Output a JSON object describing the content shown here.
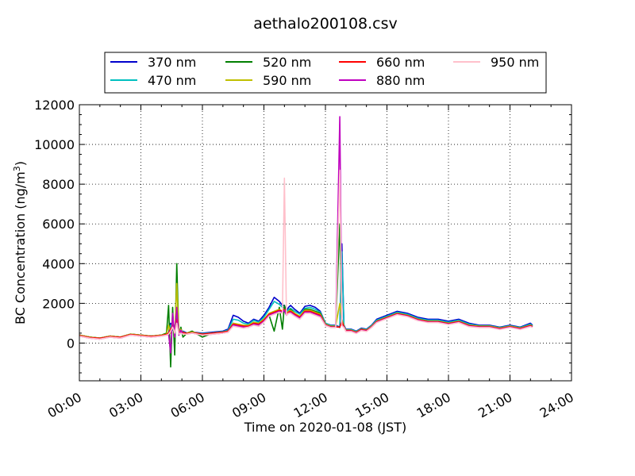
{
  "chart_data": {
    "type": "line",
    "title": "aethalo200108.csv",
    "xlabel": "Time on 2020-01-08 (JST)",
    "ylabel_main": "BC Concentration (ng/m",
    "ylabel_sup": "3",
    "ylabel_close": ")",
    "xlim": [
      0,
      24
    ],
    "ylim": [
      -1900,
      12000
    ],
    "yticks": [
      0,
      2000,
      4000,
      6000,
      8000,
      10000,
      12000
    ],
    "ytick_labels": [
      "0",
      "2000",
      "4000",
      "6000",
      "8000",
      "10000",
      "12000"
    ],
    "xticks": [
      0,
      3,
      6,
      9,
      12,
      15,
      18,
      21,
      24
    ],
    "xtick_labels": [
      "00:00",
      "03:00",
      "06:00",
      "09:00",
      "12:00",
      "15:00",
      "18:00",
      "21:00",
      "24:00"
    ],
    "grid": true,
    "legend_position": "top-center",
    "x": [
      0.0,
      0.5,
      1.0,
      1.5,
      2.0,
      2.5,
      3.0,
      3.5,
      4.0,
      4.25,
      4.35,
      4.45,
      4.55,
      4.65,
      4.75,
      4.85,
      4.95,
      5.05,
      5.25,
      5.5,
      6.0,
      6.5,
      7.0,
      7.25,
      7.5,
      7.75,
      8.0,
      8.25,
      8.5,
      8.75,
      9.0,
      9.25,
      9.5,
      9.75,
      9.9,
      10.0,
      10.1,
      10.2,
      10.3,
      10.5,
      10.75,
      11.0,
      11.25,
      11.5,
      11.75,
      12.0,
      12.25,
      12.5,
      12.7,
      12.8,
      12.9,
      13.0,
      13.25,
      13.5,
      13.75,
      14.0,
      14.25,
      14.5,
      14.75,
      15.0,
      15.5,
      16.0,
      16.5,
      17.0,
      17.5,
      18.0,
      18.5,
      19.0,
      19.5,
      20.0,
      20.5,
      21.0,
      21.5,
      22.0,
      22.1
    ],
    "series": [
      {
        "name": "370 nm",
        "color": "#0000cc",
        "values": [
          400,
          300,
          250,
          350,
          300,
          450,
          400,
          350,
          400,
          450,
          500,
          1000,
          700,
          800,
          1500,
          600,
          500,
          600,
          500,
          550,
          500,
          550,
          600,
          700,
          1400,
          1300,
          1100,
          1000,
          1200,
          1100,
          1400,
          1800,
          2300,
          2100,
          1900,
          1900,
          1600,
          1800,
          1900,
          1700,
          1500,
          1850,
          1900,
          1800,
          1600,
          1000,
          900,
          900,
          800,
          5000,
          900,
          700,
          700,
          600,
          750,
          700,
          900,
          1200,
          1300,
          1400,
          1600,
          1500,
          1300,
          1200,
          1200,
          1100,
          1200,
          1000,
          900,
          900,
          800,
          900,
          800,
          1000,
          900
        ]
      },
      {
        "name": "470 nm",
        "color": "#00bfbf",
        "values": [
          400,
          300,
          250,
          350,
          300,
          450,
          400,
          350,
          400,
          450,
          480,
          900,
          650,
          750,
          1400,
          580,
          480,
          580,
          480,
          520,
          480,
          520,
          580,
          650,
          1200,
          1150,
          1000,
          950,
          1150,
          1050,
          1300,
          1700,
          2100,
          1950,
          1800,
          1800,
          1550,
          1700,
          1750,
          1600,
          1450,
          1750,
          1800,
          1700,
          1550,
          1000,
          880,
          880,
          780,
          4600,
          880,
          680,
          680,
          580,
          720,
          680,
          880,
          1150,
          1250,
          1350,
          1550,
          1450,
          1250,
          1150,
          1150,
          1050,
          1150,
          950,
          870,
          870,
          780,
          870,
          780,
          950,
          870
        ]
      },
      {
        "name": "520 nm",
        "color": "#007f00",
        "values": [
          400,
          300,
          250,
          350,
          300,
          450,
          400,
          350,
          400,
          500,
          1900,
          -1200,
          1800,
          -600,
          4000,
          400,
          800,
          300,
          500,
          600,
          300,
          500,
          550,
          600,
          1000,
          900,
          850,
          900,
          1000,
          1000,
          1200,
          1400,
          600,
          1800,
          700,
          1900,
          1500,
          1600,
          1700,
          1500,
          1300,
          1700,
          1700,
          1600,
          1500,
          950,
          850,
          850,
          6000,
          1000,
          800,
          650,
          650,
          550,
          700,
          650,
          850,
          1100,
          1200,
          1300,
          1500,
          1400,
          1200,
          1100,
          1100,
          1000,
          1100,
          900,
          850,
          850,
          750,
          850,
          750,
          900,
          850
        ]
      },
      {
        "name": "590 nm",
        "color": "#bfbf00",
        "values": [
          400,
          300,
          250,
          350,
          300,
          450,
          400,
          350,
          400,
          450,
          900,
          500,
          1200,
          300,
          3000,
          500,
          700,
          450,
          500,
          550,
          450,
          500,
          550,
          600,
          1000,
          950,
          900,
          900,
          1050,
          1000,
          1200,
          1500,
          1600,
          1700,
          1600,
          1700,
          1500,
          1600,
          1650,
          1500,
          1350,
          1650,
          1650,
          1550,
          1450,
          950,
          850,
          850,
          2000,
          1200,
          850,
          650,
          650,
          550,
          700,
          650,
          850,
          1100,
          1200,
          1300,
          1500,
          1400,
          1200,
          1100,
          1100,
          1000,
          1100,
          900,
          850,
          850,
          750,
          850,
          750,
          900,
          850
        ]
      },
      {
        "name": "660 nm",
        "color": "#ff0000",
        "values": [
          380,
          280,
          240,
          330,
          290,
          430,
          380,
          340,
          380,
          440,
          500,
          700,
          900,
          600,
          1200,
          550,
          550,
          550,
          480,
          520,
          450,
          500,
          550,
          600,
          950,
          900,
          850,
          850,
          1000,
          950,
          1150,
          1450,
          1550,
          1650,
          1600,
          1700,
          1450,
          1550,
          1600,
          1450,
          1300,
          1600,
          1600,
          1500,
          1400,
          920,
          820,
          820,
          800,
          1100,
          820,
          630,
          630,
          530,
          680,
          630,
          820,
          1080,
          1180,
          1280,
          1480,
          1380,
          1180,
          1080,
          1080,
          980,
          1080,
          880,
          820,
          820,
          730,
          820,
          730,
          880,
          820
        ]
      },
      {
        "name": "880 nm",
        "color": "#bf00bf",
        "values": [
          350,
          250,
          200,
          300,
          250,
          400,
          350,
          300,
          350,
          400,
          450,
          -500,
          1500,
          300,
          1800,
          400,
          650,
          450,
          450,
          500,
          400,
          450,
          500,
          550,
          900,
          850,
          800,
          800,
          950,
          900,
          1100,
          1400,
          1500,
          1600,
          1550,
          1650,
          1400,
          1500,
          1550,
          1400,
          1250,
          1550,
          1550,
          1450,
          1350,
          900,
          800,
          800,
          11400,
          900,
          800,
          600,
          600,
          500,
          650,
          600,
          800,
          1050,
          1150,
          1250,
          1450,
          1350,
          1150,
          1050,
          1050,
          950,
          1050,
          850,
          800,
          800,
          700,
          800,
          700,
          850,
          800
        ]
      },
      {
        "name": "950 nm",
        "color": "#ffc0cb",
        "values": [
          350,
          250,
          200,
          300,
          250,
          400,
          350,
          300,
          350,
          400,
          450,
          600,
          800,
          500,
          1000,
          450,
          500,
          450,
          450,
          500,
          400,
          450,
          500,
          550,
          850,
          800,
          750,
          800,
          900,
          850,
          1050,
          1350,
          1450,
          1550,
          1500,
          8300,
          1400,
          1500,
          1500,
          1350,
          1200,
          1500,
          1500,
          1400,
          1300,
          880,
          780,
          780,
          8700,
          880,
          780,
          580,
          580,
          480,
          630,
          580,
          780,
          1030,
          1130,
          1230,
          1430,
          1330,
          1130,
          1030,
          1030,
          930,
          1030,
          830,
          780,
          780,
          680,
          780,
          680,
          830,
          780
        ]
      }
    ]
  }
}
